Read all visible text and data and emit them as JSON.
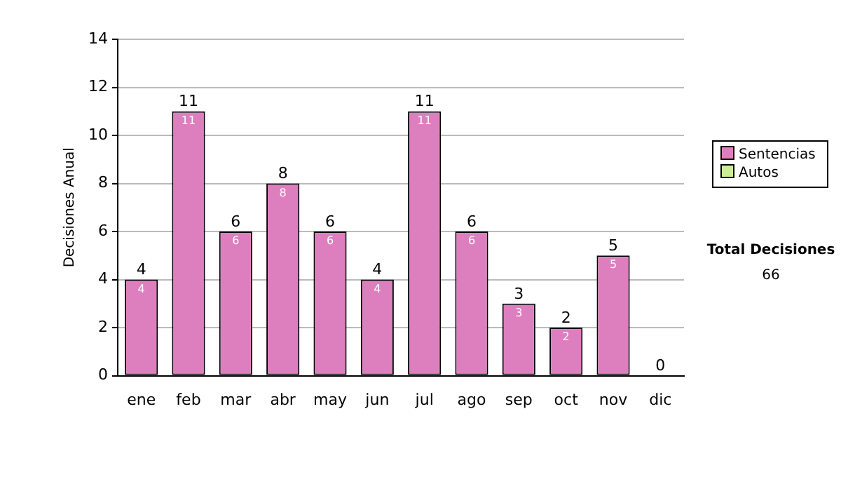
{
  "chart_data": {
    "type": "bar",
    "ylabel": "Decisiones Anual",
    "categories": [
      "ene",
      "feb",
      "mar",
      "abr",
      "may",
      "jun",
      "jul",
      "ago",
      "sep",
      "oct",
      "nov",
      "dic"
    ],
    "series": [
      {
        "name": "Sentencias",
        "color": "#dd7fbf",
        "values": [
          4,
          11,
          6,
          8,
          6,
          4,
          11,
          6,
          3,
          2,
          5,
          0
        ],
        "value_labels": [
          "4",
          "11",
          "6",
          "8",
          "6",
          "4",
          "11",
          "6",
          "3",
          "2",
          "5",
          null
        ]
      },
      {
        "name": "Autos",
        "color": "#ccee99",
        "values": [
          0,
          0,
          0,
          0,
          0,
          0,
          0,
          0,
          0,
          0,
          0,
          0
        ]
      }
    ],
    "stacked": true,
    "totals": [
      "4",
      "11",
      "6",
      "8",
      "6",
      "4",
      "11",
      "6",
      "3",
      "2",
      "5",
      "0"
    ],
    "ylim": [
      0,
      14
    ],
    "yticks": [
      0,
      2,
      4,
      6,
      8,
      10,
      12,
      14
    ],
    "grid": "y",
    "legend": "right",
    "annotations": [
      "Total Decisiones",
      "66"
    ]
  }
}
